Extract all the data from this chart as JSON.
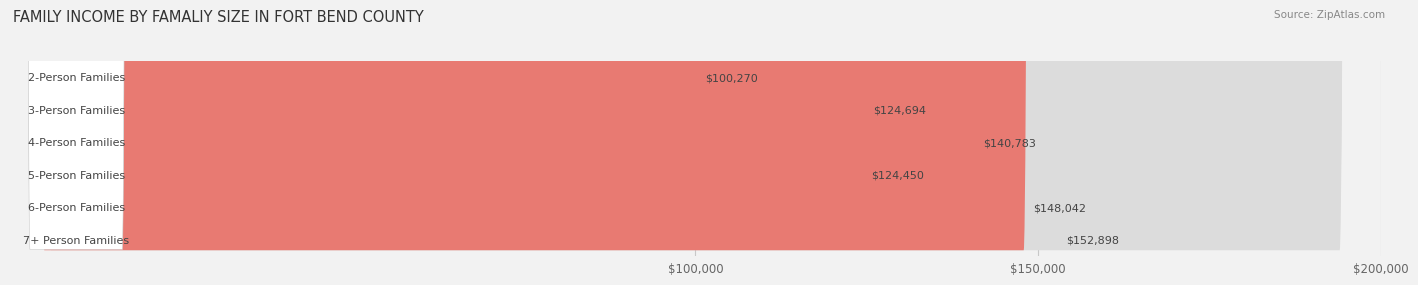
{
  "title": "FAMILY INCOME BY FAMALIY SIZE IN FORT BEND COUNTY",
  "source": "Source: ZipAtlas.com",
  "categories": [
    "2-Person Families",
    "3-Person Families",
    "4-Person Families",
    "5-Person Families",
    "6-Person Families",
    "7+ Person Families"
  ],
  "values": [
    100270,
    124694,
    140783,
    124450,
    148042,
    152898
  ],
  "bar_colors": [
    "#c9a8d4",
    "#6ec5be",
    "#9b9fd4",
    "#f090b0",
    "#f5b96e",
    "#e87a72"
  ],
  "xlim": [
    0,
    200000
  ],
  "xticks": [
    100000,
    150000,
    200000
  ],
  "xtick_labels": [
    "$100,000",
    "$150,000",
    "$200,000"
  ],
  "value_labels": [
    "$100,270",
    "$124,694",
    "$140,783",
    "$124,450",
    "$148,042",
    "$152,898"
  ],
  "bg_color": "#f2f2f2",
  "title_fontsize": 10.5,
  "bar_height": 0.62,
  "bar_label_fontsize": 8.0,
  "value_fontsize": 8.0,
  "source_fontsize": 7.5
}
